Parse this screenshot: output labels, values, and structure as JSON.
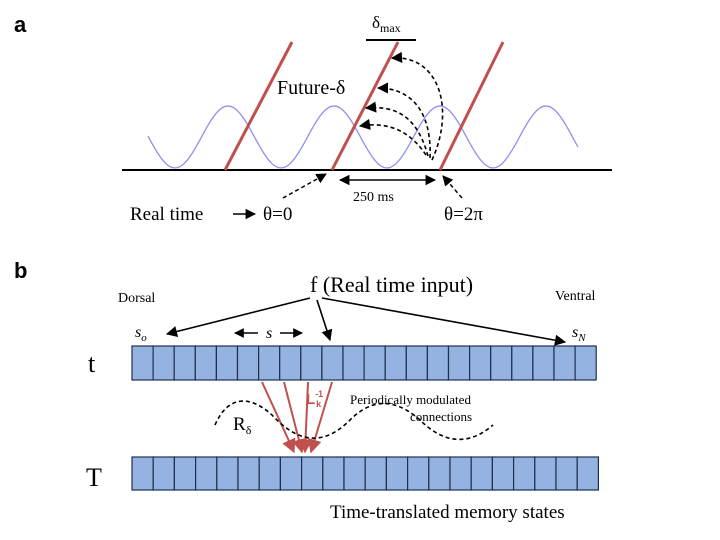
{
  "panel_a": {
    "label": "a",
    "delta_max": {
      "base": "δ",
      "sub": "max"
    },
    "future": "Future-δ",
    "interval": "250 ms",
    "real_time": "Real time",
    "theta_start": "θ=0",
    "theta_end": "θ=2π"
  },
  "panel_b": {
    "label": "b",
    "input": "f (Real time input)",
    "dorsal": "Dorsal",
    "ventral": "Ventral",
    "s_first": {
      "base": "s",
      "sub": "o"
    },
    "s_spacing": "s",
    "s_last": {
      "base": "s",
      "sub": "N"
    },
    "row_top": "t",
    "row_bottom": "T",
    "operator": {
      "base": "L",
      "sub": "k",
      "sup": "-1"
    },
    "modulation": {
      "base": "R",
      "sub": "δ"
    },
    "connections": [
      "Periodically  modulated",
      "connections"
    ],
    "caption": "Time-translated memory states"
  }
}
